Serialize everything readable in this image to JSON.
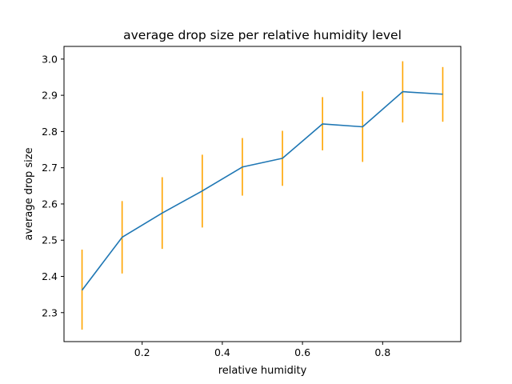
{
  "chart_data": {
    "type": "line",
    "title": "average drop size per relative humidity level",
    "xlabel": "relative humidity",
    "ylabel": "average drop size",
    "xlim": [
      0.005,
      0.995
    ],
    "ylim": [
      2.22,
      3.035
    ],
    "x_ticks": [
      0.2,
      0.4,
      0.6,
      0.8
    ],
    "x_tick_labels": [
      "0.2",
      "0.4",
      "0.6",
      "0.8"
    ],
    "y_ticks": [
      2.3,
      2.4,
      2.5,
      2.6,
      2.7,
      2.8,
      2.9,
      3.0
    ],
    "y_tick_labels": [
      "2.3",
      "2.4",
      "2.5",
      "2.6",
      "2.7",
      "2.8",
      "2.9",
      "3.0"
    ],
    "grid": false,
    "series": [
      {
        "x": [
          0.05,
          0.15,
          0.25,
          0.35,
          0.45,
          0.55,
          0.65,
          0.75,
          0.85,
          0.95
        ],
        "y": [
          2.362,
          2.508,
          2.575,
          2.636,
          2.702,
          2.726,
          2.821,
          2.813,
          2.91,
          2.903
        ],
        "error_low": [
          2.253,
          2.408,
          2.476,
          2.535,
          2.623,
          2.65,
          2.748,
          2.716,
          2.825,
          2.827
        ],
        "error_high": [
          2.474,
          2.608,
          2.674,
          2.736,
          2.782,
          2.802,
          2.895,
          2.911,
          2.994,
          2.978
        ],
        "line_color": "#1f77b4",
        "error_color": "#ffa500"
      }
    ]
  }
}
